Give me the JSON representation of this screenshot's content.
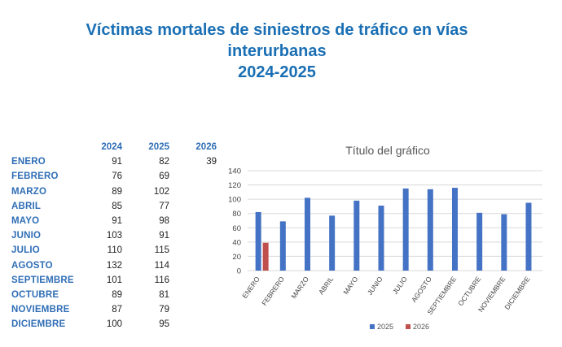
{
  "heading": {
    "line1": "Víctimas mortales de siniestros de tráfico en vías",
    "line2": "interurbanas",
    "line3": "2024-2025"
  },
  "table": {
    "columns": [
      "2024",
      "2025",
      "2026"
    ],
    "rows": [
      {
        "month": "ENERO",
        "v2024": "91",
        "v2025": "82",
        "v2026": "39"
      },
      {
        "month": "FEBRERO",
        "v2024": "76",
        "v2025": "69",
        "v2026": ""
      },
      {
        "month": "MARZO",
        "v2024": "89",
        "v2025": "102",
        "v2026": ""
      },
      {
        "month": "ABRIL",
        "v2024": "85",
        "v2025": "77",
        "v2026": ""
      },
      {
        "month": "MAYO",
        "v2024": "91",
        "v2025": "98",
        "v2026": ""
      },
      {
        "month": "JUNIO",
        "v2024": "103",
        "v2025": "91",
        "v2026": ""
      },
      {
        "month": "JULIO",
        "v2024": "110",
        "v2025": "115",
        "v2026": ""
      },
      {
        "month": "AGOSTO",
        "v2024": "132",
        "v2025": "114",
        "v2026": ""
      },
      {
        "month": "SEPTIEMBRE",
        "v2024": "101",
        "v2025": "116",
        "v2026": ""
      },
      {
        "month": "OCTUBRE",
        "v2024": "89",
        "v2025": "81",
        "v2026": ""
      },
      {
        "month": "NOVIEMBRE",
        "v2024": "87",
        "v2025": "79",
        "v2026": ""
      },
      {
        "month": "DICIEMBRE",
        "v2024": "100",
        "v2025": "95",
        "v2026": ""
      }
    ]
  },
  "chart_data": {
    "type": "bar",
    "title": "Título del gráfico",
    "categories": [
      "ENERO",
      "FEBRERO",
      "MARZO",
      "ABRIL",
      "MAYO",
      "JUNIO",
      "JULIO",
      "AGOSTO",
      "SEPTIEMBRE",
      "OCTUBRE",
      "NOVIEMBRE",
      "DICIEMBRE"
    ],
    "series": [
      {
        "name": "2025",
        "color": "#4472c4",
        "values": [
          82,
          69,
          102,
          77,
          98,
          91,
          115,
          114,
          116,
          81,
          79,
          95
        ]
      },
      {
        "name": "2026",
        "color": "#c0504d",
        "values": [
          39,
          null,
          null,
          null,
          null,
          null,
          null,
          null,
          null,
          null,
          null,
          null
        ]
      }
    ],
    "ylim": [
      0,
      140
    ],
    "yticks": [
      0,
      20,
      40,
      60,
      80,
      100,
      120,
      140
    ],
    "grid": true,
    "legend": "bottom"
  }
}
